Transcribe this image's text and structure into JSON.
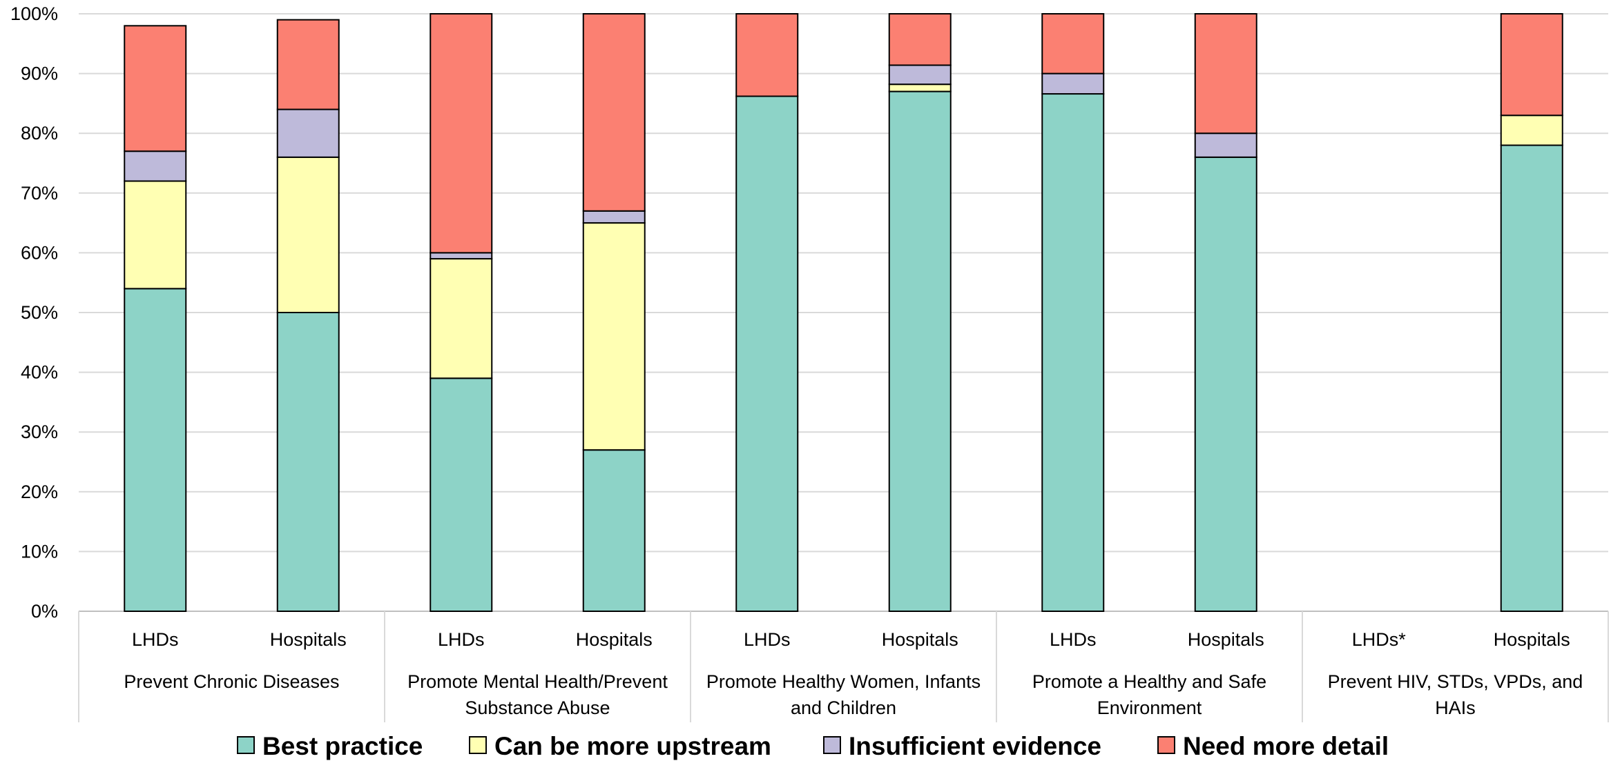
{
  "chart_data": {
    "type": "bar",
    "stacked": true,
    "title": "",
    "xlabel": "",
    "ylabel": "",
    "ylim": [
      0,
      100
    ],
    "y_ticks": [
      "0%",
      "10%",
      "20%",
      "30%",
      "40%",
      "50%",
      "60%",
      "70%",
      "80%",
      "90%",
      "100%"
    ],
    "grid": true,
    "legend_position": "bottom",
    "groups": [
      {
        "label": "Prevent Chronic Diseases",
        "categories": [
          "LHDs",
          "Hospitals"
        ]
      },
      {
        "label": "Promote Mental Health/Prevent Substance Abuse",
        "categories": [
          "LHDs",
          "Hospitals"
        ]
      },
      {
        "label": "Promote Healthy Women, Infants and Children",
        "categories": [
          "LHDs",
          "Hospitals"
        ]
      },
      {
        "label": "Promote a Healthy and Safe Environment",
        "categories": [
          "LHDs",
          "Hospitals"
        ]
      },
      {
        "label": "Prevent HIV, STDs, VPDs, and HAIs",
        "categories": [
          "LHDs*",
          "Hospitals"
        ]
      }
    ],
    "categories": [
      "LHDs",
      "Hospitals",
      "LHDs",
      "Hospitals",
      "LHDs",
      "Hospitals",
      "LHDs",
      "Hospitals",
      "LHDs*",
      "Hospitals"
    ],
    "series": [
      {
        "name": "Best practice",
        "color": "#8dd3c7",
        "values": [
          54,
          50,
          39,
          27,
          86.2,
          87,
          86.6,
          76,
          0,
          78
        ]
      },
      {
        "name": "Can be more upstream",
        "color": "#ffffb3",
        "values": [
          18,
          26,
          20,
          38,
          0,
          1.2,
          0,
          0,
          0,
          5
        ]
      },
      {
        "name": "Insufficient evidence",
        "color": "#bebada",
        "values": [
          5,
          8,
          1,
          2,
          0,
          3.2,
          3.4,
          4,
          0,
          0
        ]
      },
      {
        "name": "Need more detail",
        "color": "#fb8072",
        "values": [
          21,
          15,
          40,
          33,
          13.8,
          8.6,
          10,
          20,
          0,
          17
        ]
      }
    ]
  }
}
